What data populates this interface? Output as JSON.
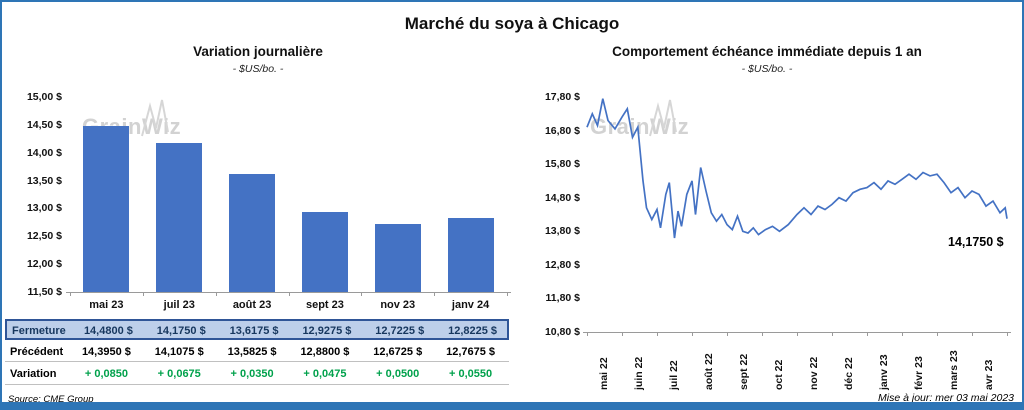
{
  "page": {
    "title": "Marché du soya à Chicago",
    "source": "Source: CME Group",
    "updated": "Mise à jour: mer 03 mai 2023"
  },
  "watermark": "GrainWiz",
  "colors": {
    "bar": "#4472C4",
    "line": "#4472C4",
    "accent_border": "#2E75B6",
    "fermeture_bg": "#BDCFEA",
    "fermeture_border": "#2F5597",
    "fermeture_text": "#17375E",
    "variation_green": "#00A14B"
  },
  "chart_data": [
    {
      "type": "bar",
      "title": "Variation  journalière",
      "subtitle": "- $US/bo. -",
      "categories": [
        "mai 23",
        "juil 23",
        "août 23",
        "sept 23",
        "nov 23",
        "janv 24"
      ],
      "values": [
        14.48,
        14.175,
        13.6175,
        12.9275,
        12.7225,
        12.8225
      ],
      "ylim": [
        11.5,
        15.0
      ],
      "ytick_labels": [
        "15,00 $",
        "14,50 $",
        "14,00 $",
        "13,50 $",
        "13,00 $",
        "12,50 $",
        "12,00 $",
        "11,50 $"
      ],
      "grid": false,
      "legend": false,
      "table": {
        "rows": [
          {
            "key": "fermeture",
            "label": "Fermeture",
            "values": [
              "14,4800  $",
              "14,1750  $",
              "13,6175  $",
              "12,9275  $",
              "12,7225  $",
              "12,8225  $"
            ]
          },
          {
            "key": "precedent",
            "label": "Précédent",
            "values": [
              "14,3950  $",
              "14,1075  $",
              "13,5825  $",
              "12,8800  $",
              "12,6725  $",
              "12,7675  $"
            ]
          },
          {
            "key": "variation",
            "label": "Variation",
            "values": [
              "+ 0,0850",
              "+ 0,0675",
              "+ 0,0350",
              "+ 0,0475",
              "+ 0,0500",
              "+ 0,0550"
            ]
          }
        ]
      }
    },
    {
      "type": "line",
      "title": "Comportement  échéance  immédiate depuis 1 an",
      "subtitle": "- $US/bo. -",
      "x_labels": [
        "mai 22",
        "juin 22",
        "juil 22",
        "août 22",
        "sept 22",
        "oct 22",
        "nov 22",
        "déc 22",
        "janv 23",
        "févr 23",
        "mars 23",
        "avr 23"
      ],
      "ylim": [
        10.8,
        17.8
      ],
      "ytick_labels": [
        "17,80 $",
        "16,80 $",
        "15,80 $",
        "14,80 $",
        "13,80 $",
        "12,80 $",
        "11,80 $",
        "10,80 $"
      ],
      "grid": false,
      "legend": false,
      "annotation": "14,1750 $",
      "points": [
        [
          0.0,
          16.9
        ],
        [
          0.15,
          17.3
        ],
        [
          0.3,
          16.95
        ],
        [
          0.45,
          17.75
        ],
        [
          0.6,
          17.1
        ],
        [
          0.8,
          16.85
        ],
        [
          1.0,
          17.2
        ],
        [
          1.15,
          17.45
        ],
        [
          1.3,
          16.6
        ],
        [
          1.45,
          16.9
        ],
        [
          1.6,
          15.3
        ],
        [
          1.7,
          14.5
        ],
        [
          1.85,
          14.15
        ],
        [
          2.0,
          14.45
        ],
        [
          2.1,
          13.9
        ],
        [
          2.25,
          14.9
        ],
        [
          2.35,
          15.25
        ],
        [
          2.5,
          13.6
        ],
        [
          2.6,
          14.4
        ],
        [
          2.7,
          13.95
        ],
        [
          2.85,
          14.9
        ],
        [
          3.0,
          15.3
        ],
        [
          3.1,
          14.3
        ],
        [
          3.25,
          15.7
        ],
        [
          3.4,
          15.0
        ],
        [
          3.55,
          14.35
        ],
        [
          3.7,
          14.1
        ],
        [
          3.85,
          14.3
        ],
        [
          4.0,
          14.0
        ],
        [
          4.15,
          13.85
        ],
        [
          4.3,
          14.25
        ],
        [
          4.45,
          13.8
        ],
        [
          4.6,
          13.75
        ],
        [
          4.75,
          13.9
        ],
        [
          4.9,
          13.7
        ],
        [
          5.1,
          13.85
        ],
        [
          5.3,
          13.95
        ],
        [
          5.5,
          13.8
        ],
        [
          5.75,
          14.0
        ],
        [
          6.0,
          14.3
        ],
        [
          6.2,
          14.5
        ],
        [
          6.4,
          14.3
        ],
        [
          6.6,
          14.55
        ],
        [
          6.8,
          14.45
        ],
        [
          7.0,
          14.6
        ],
        [
          7.2,
          14.8
        ],
        [
          7.4,
          14.7
        ],
        [
          7.6,
          14.95
        ],
        [
          7.8,
          15.05
        ],
        [
          8.0,
          15.1
        ],
        [
          8.2,
          15.25
        ],
        [
          8.4,
          15.05
        ],
        [
          8.6,
          15.3
        ],
        [
          8.8,
          15.2
        ],
        [
          9.0,
          15.35
        ],
        [
          9.2,
          15.5
        ],
        [
          9.4,
          15.35
        ],
        [
          9.6,
          15.55
        ],
        [
          9.8,
          15.45
        ],
        [
          10.0,
          15.5
        ],
        [
          10.2,
          15.25
        ],
        [
          10.4,
          14.95
        ],
        [
          10.6,
          15.1
        ],
        [
          10.8,
          14.8
        ],
        [
          11.0,
          15.0
        ],
        [
          11.2,
          14.9
        ],
        [
          11.4,
          14.55
        ],
        [
          11.6,
          14.7
        ],
        [
          11.8,
          14.35
        ],
        [
          11.95,
          14.5
        ],
        [
          12.0,
          14.175
        ]
      ]
    }
  ]
}
